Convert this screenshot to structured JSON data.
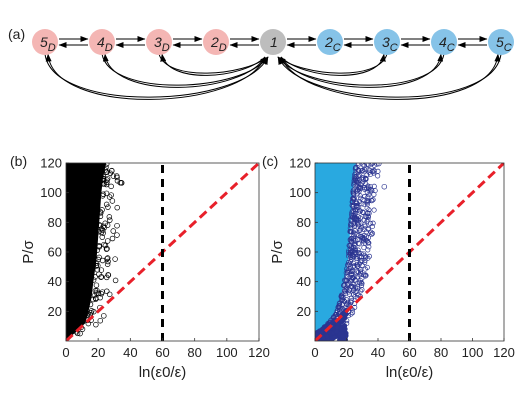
{
  "panel_labels": {
    "a": "(a)",
    "b": "(b)",
    "c": "(c)"
  },
  "chain": {
    "nodes": [
      {
        "base": "5",
        "sub": "D",
        "color": "#f4b6b4"
      },
      {
        "base": "4",
        "sub": "D",
        "color": "#f4b6b4"
      },
      {
        "base": "3",
        "sub": "D",
        "color": "#f4b6b4"
      },
      {
        "base": "2",
        "sub": "D",
        "color": "#f4b6b4"
      },
      {
        "base": "1",
        "sub": "",
        "color": "#bdbdbd"
      },
      {
        "base": "2",
        "sub": "C",
        "color": "#86c3e8"
      },
      {
        "base": "3",
        "sub": "C",
        "color": "#86c3e8"
      },
      {
        "base": "4",
        "sub": "C",
        "color": "#86c3e8"
      },
      {
        "base": "5",
        "sub": "C",
        "color": "#86c3e8"
      }
    ]
  },
  "colors": {
    "diagonal_line": "#e8202a",
    "threshold_line": "#000000",
    "black_points": "#000000",
    "light_blue_fill": "#29a9e0",
    "dark_blue_points": "#2b3591"
  },
  "chart_data": [
    {
      "panel": "(b)",
      "type": "scatter",
      "xlabel": "ln(ε0/ε)",
      "ylabel": "P/σ",
      "xlim": [
        0,
        120
      ],
      "ylim": [
        0,
        120
      ],
      "xticks": [
        "0",
        "20",
        "40",
        "60",
        "80",
        "100",
        "120"
      ],
      "yticks": [
        "20",
        "40",
        "60",
        "80",
        "100",
        "120"
      ],
      "diagonal_line": {
        "style": "dashed",
        "color": "#e8202a",
        "from": [
          0,
          0
        ],
        "to": [
          120,
          120
        ]
      },
      "threshold_line": {
        "style": "dashed",
        "color": "#000000",
        "x": 60
      },
      "point_cloud_edge": [
        [
          0,
          0
        ],
        [
          3,
          3
        ],
        [
          6,
          6
        ],
        [
          9,
          9
        ],
        [
          12,
          12
        ],
        [
          14,
          20
        ],
        [
          16,
          30
        ],
        [
          17,
          40
        ],
        [
          19,
          55
        ],
        [
          20,
          70
        ],
        [
          21,
          85
        ],
        [
          22,
          100
        ],
        [
          23,
          110
        ],
        [
          25,
          120
        ]
      ]
    },
    {
      "panel": "(c)",
      "type": "scatter",
      "xlabel": "ln(ε0/ε)",
      "ylabel": "P/σ",
      "xlim": [
        0,
        120
      ],
      "ylim": [
        0,
        120
      ],
      "xticks": [
        "0",
        "20",
        "40",
        "60",
        "80",
        "100",
        "120"
      ],
      "yticks": [
        "20",
        "40",
        "60",
        "80",
        "100",
        "120"
      ],
      "diagonal_line": {
        "style": "dashed",
        "color": "#e8202a",
        "from": [
          0,
          0
        ],
        "to": [
          120,
          120
        ]
      },
      "threshold_line": {
        "style": "dashed",
        "color": "#000000",
        "x": 60
      },
      "light_region_edge": [
        [
          0,
          0
        ],
        [
          3,
          4
        ],
        [
          6,
          9
        ],
        [
          9,
          13
        ],
        [
          12,
          17
        ],
        [
          15,
          24
        ],
        [
          17,
          32
        ],
        [
          19,
          42
        ],
        [
          21,
          55
        ],
        [
          22,
          70
        ],
        [
          23,
          85
        ],
        [
          24,
          100
        ],
        [
          25,
          110
        ],
        [
          26,
          120
        ]
      ],
      "dark_band_edge": [
        [
          0,
          0
        ],
        [
          6,
          2
        ],
        [
          12,
          4
        ],
        [
          18,
          8
        ],
        [
          22,
          14
        ],
        [
          26,
          22
        ],
        [
          30,
          32
        ],
        [
          33,
          45
        ],
        [
          35,
          60
        ],
        [
          37,
          75
        ],
        [
          38,
          90
        ],
        [
          39,
          105
        ],
        [
          41,
          120
        ]
      ]
    }
  ]
}
